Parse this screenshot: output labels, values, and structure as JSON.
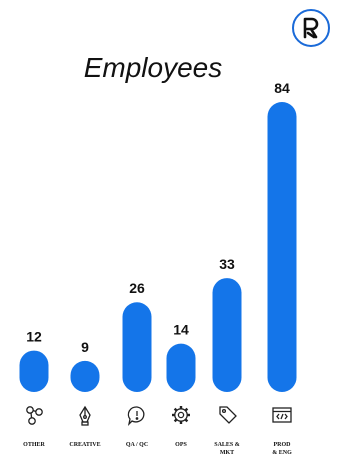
{
  "logo_text": "R",
  "chart_data": {
    "type": "bar",
    "title": "Employees",
    "categories": [
      "OTHER",
      "CREATIVE",
      "QA / QC",
      "OPS",
      "SALES & MKT",
      "PROD & ENG"
    ],
    "category_lines": [
      [
        "OTHER"
      ],
      [
        "CREATIVE"
      ],
      [
        "QA / QC"
      ],
      [
        "OPS"
      ],
      [
        "SALES &",
        "MKT"
      ],
      [
        "PROD",
        "& ENG"
      ]
    ],
    "values": [
      12,
      9,
      26,
      14,
      33,
      84
    ],
    "icons": [
      "network-icon",
      "pen-nib-icon",
      "alert-bubble-icon",
      "gear-icon",
      "tag-icon",
      "code-window-icon"
    ],
    "bar_color": "#1475e9",
    "xlabel": "",
    "ylabel": "",
    "grid": false
  }
}
